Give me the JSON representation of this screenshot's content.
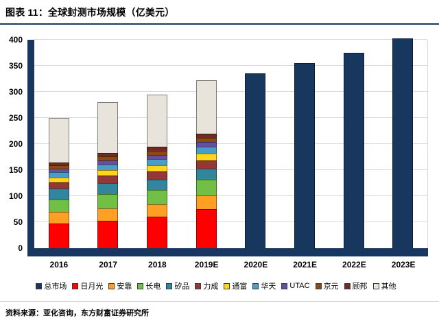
{
  "header": {
    "title": "图表 11：全球封测市场规模（亿美元）"
  },
  "footer": {
    "source": "资料来源：亚化咨询，东方财富证券研究所"
  },
  "colors": {
    "accent_navy": "#17375E",
    "gridline": "#DADADA"
  },
  "chart_data": {
    "type": "bar",
    "stacked": true,
    "title": "全球封测市场规模（亿美元）",
    "xlabel": "",
    "ylabel": "",
    "ylim": [
      0,
      400
    ],
    "ytick_interval": 50,
    "grid": true,
    "legend_position": "bottom",
    "categories": [
      "2016",
      "2017",
      "2018",
      "2019E",
      "2020E",
      "2021E",
      "2022E",
      "2023E"
    ],
    "series": [
      {
        "name": "总市场",
        "color": "#17375E",
        "values": [
          null,
          null,
          null,
          null,
          335,
          355,
          375,
          403
        ]
      },
      {
        "name": "日月光",
        "color": "#FE0000",
        "values": [
          48,
          53,
          60,
          75,
          null,
          null,
          null,
          null
        ]
      },
      {
        "name": "安靠",
        "color": "#FFA024",
        "values": [
          22,
          23,
          24,
          26,
          null,
          null,
          null,
          null
        ]
      },
      {
        "name": "长电",
        "color": "#71BF45",
        "values": [
          24,
          28,
          28,
          30,
          null,
          null,
          null,
          null
        ]
      },
      {
        "name": "矽品",
        "color": "#31859C",
        "values": [
          20,
          21,
          20,
          22,
          null,
          null,
          null,
          null
        ]
      },
      {
        "name": "力成",
        "color": "#953735",
        "values": [
          12,
          14,
          15,
          16,
          null,
          null,
          null,
          null
        ]
      },
      {
        "name": "通富",
        "color": "#FFD51E",
        "values": [
          10,
          11,
          12,
          13,
          null,
          null,
          null,
          null
        ]
      },
      {
        "name": "华天",
        "color": "#4A9CC9",
        "values": [
          10,
          11,
          12,
          13,
          null,
          null,
          null,
          null
        ]
      },
      {
        "name": "UTAC",
        "color": "#66509E",
        "values": [
          7,
          8,
          8,
          9,
          null,
          null,
          null,
          null
        ]
      },
      {
        "name": "京元",
        "color": "#8B4A15",
        "values": [
          6,
          7,
          8,
          8,
          null,
          null,
          null,
          null
        ]
      },
      {
        "name": "顾邦",
        "color": "#6E2C24",
        "values": [
          6,
          7,
          8,
          8,
          null,
          null,
          null,
          null
        ]
      },
      {
        "name": "其他",
        "color": "#E8E4DC",
        "values": [
          85,
          97,
          100,
          102,
          null,
          null,
          null,
          null
        ]
      }
    ]
  }
}
